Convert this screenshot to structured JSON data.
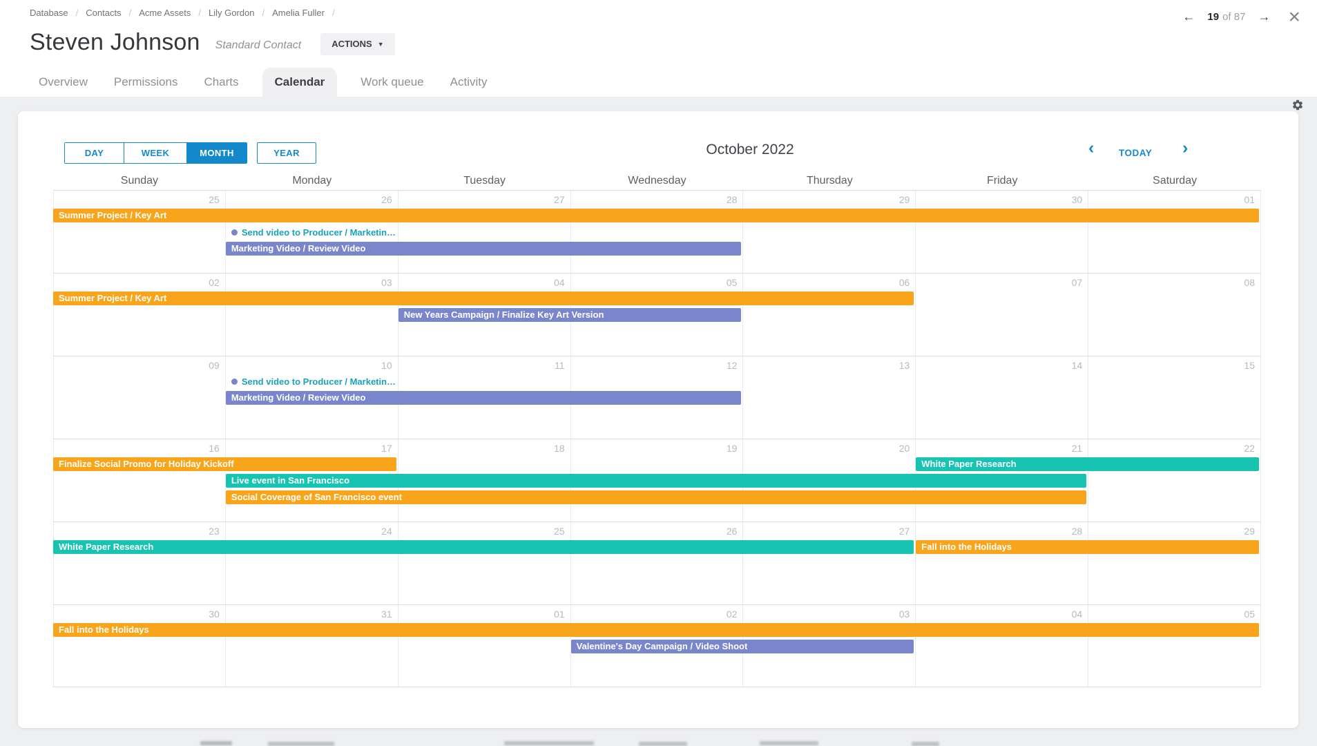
{
  "window": {
    "pager": {
      "prev_icon": "←",
      "current": "19",
      "separator": "of",
      "total": "87",
      "next_icon": "→",
      "close_icon": "×"
    }
  },
  "breadcrumb": {
    "separator": "/",
    "items": [
      "Database",
      "Contacts",
      "Acme Assets",
      "Lily Gordon",
      "Amelia Fuller"
    ]
  },
  "contact_header": {
    "name": "Steven Johnson",
    "type_label": "Standard Contact",
    "actions_button": "ACTIONS",
    "caret_icon": "▼"
  },
  "tabs": {
    "items": [
      {
        "label": "Overview",
        "active": false
      },
      {
        "label": "Permissions",
        "active": false
      },
      {
        "label": "Charts",
        "active": false
      },
      {
        "label": "Calendar",
        "active": true
      },
      {
        "label": "Work queue",
        "active": false
      },
      {
        "label": "Activity",
        "active": false
      }
    ]
  },
  "calendar": {
    "toolbar": {
      "views": [
        {
          "label": "DAY",
          "active": false
        },
        {
          "label": "WEEK",
          "active": false
        },
        {
          "label": "MONTH",
          "active": true
        },
        {
          "label": "YEAR",
          "active": false
        }
      ],
      "title": "October 2022",
      "prev_icon": "‹",
      "today_label": "TODAY",
      "next_icon": "›"
    },
    "weekday_headers": [
      "Sunday",
      "Monday",
      "Tuesday",
      "Wednesday",
      "Thursday",
      "Friday",
      "Saturday"
    ],
    "colors": {
      "orange": "#F9A51B",
      "teal": "#17C4B1",
      "indigo": "#7986CB",
      "accent": "#1389CB",
      "dot_text": "#18A2B8"
    },
    "weeks": [
      {
        "dates": [
          "25",
          "26",
          "27",
          "28",
          "29",
          "30",
          "01"
        ],
        "events": [
          {
            "kind": "bar",
            "color": "orange",
            "label": "Summer Project / Key Art",
            "start": 0,
            "span": 7,
            "row": 0
          },
          {
            "kind": "dot",
            "color": "indigo",
            "label": "Send video to Producer / Marketin…",
            "start": 1,
            "span": 1,
            "row": 1
          },
          {
            "kind": "bar",
            "color": "indigo",
            "label": "Marketing Video / Review Video",
            "start": 1,
            "span": 3,
            "row": 2
          }
        ]
      },
      {
        "dates": [
          "02",
          "03",
          "04",
          "05",
          "06",
          "07",
          "08"
        ],
        "events": [
          {
            "kind": "bar",
            "color": "orange",
            "label": "Summer Project / Key Art",
            "start": 0,
            "span": 5,
            "row": 0
          },
          {
            "kind": "bar",
            "color": "indigo",
            "label": "New Years Campaign / Finalize Key Art Version",
            "start": 2,
            "span": 2,
            "row": 1
          }
        ]
      },
      {
        "dates": [
          "09",
          "10",
          "11",
          "12",
          "13",
          "14",
          "15"
        ],
        "events": [
          {
            "kind": "dot",
            "color": "indigo",
            "label": "Send video to Producer / Marketin…",
            "start": 1,
            "span": 1,
            "row": 0
          },
          {
            "kind": "bar",
            "color": "indigo",
            "label": "Marketing Video / Review Video",
            "start": 1,
            "span": 3,
            "row": 1
          }
        ]
      },
      {
        "dates": [
          "16",
          "17",
          "18",
          "19",
          "20",
          "21",
          "22"
        ],
        "events": [
          {
            "kind": "bar",
            "color": "orange",
            "label": "Finalize Social Promo for Holiday Kickoff",
            "start": 0,
            "span": 2,
            "row": 0
          },
          {
            "kind": "bar",
            "color": "teal",
            "label": "White Paper Research",
            "start": 5,
            "span": 2,
            "row": 0
          },
          {
            "kind": "bar",
            "color": "teal",
            "label": "Live event in San Francisco",
            "start": 1,
            "span": 5,
            "row": 1
          },
          {
            "kind": "bar",
            "color": "orange",
            "label": "Social Coverage of San Francisco event",
            "start": 1,
            "span": 5,
            "row": 2
          }
        ]
      },
      {
        "dates": [
          "23",
          "24",
          "25",
          "26",
          "27",
          "28",
          "29"
        ],
        "events": [
          {
            "kind": "bar",
            "color": "teal",
            "label": "White Paper Research",
            "start": 0,
            "span": 5,
            "row": 0
          },
          {
            "kind": "bar",
            "color": "orange",
            "label": "Fall into the Holidays",
            "start": 5,
            "span": 2,
            "row": 0
          }
        ]
      },
      {
        "dates": [
          "30",
          "31",
          "01",
          "02",
          "03",
          "04",
          "05"
        ],
        "events": [
          {
            "kind": "bar",
            "color": "orange",
            "label": "Fall into the Holidays",
            "start": 0,
            "span": 7,
            "row": 0
          },
          {
            "kind": "bar",
            "color": "indigo",
            "label": "Valentine's Day Campaign / Video Shoot",
            "start": 3,
            "span": 2,
            "row": 1
          }
        ]
      }
    ]
  }
}
